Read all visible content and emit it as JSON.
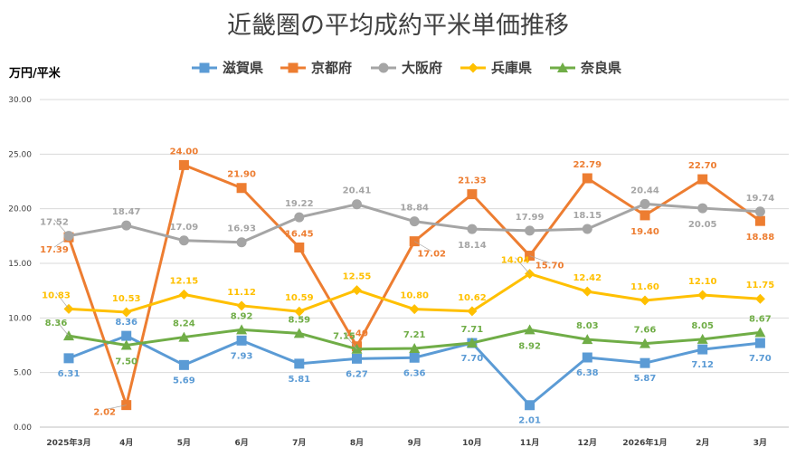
{
  "chart_data": {
    "type": "line",
    "title": "近畿圏の平均成約平米単価推移",
    "ylabel": "万円/平米",
    "xlabel": "",
    "ylim": [
      0,
      30
    ],
    "yticks": [
      "0.00",
      "5.00",
      "10.00",
      "15.00",
      "20.00",
      "25.00",
      "30.00"
    ],
    "grid": true,
    "legend_position": "top",
    "categories": [
      "2025年3月",
      "4月",
      "5月",
      "6月",
      "7月",
      "8月",
      "9月",
      "10月",
      "11月",
      "12月",
      "2026年1月",
      "2月",
      "3月"
    ],
    "series": [
      {
        "name": "滋賀県",
        "color": "#5b9bd5",
        "marker": "square",
        "values": [
          6.31,
          8.36,
          5.69,
          7.93,
          5.81,
          6.27,
          6.36,
          7.7,
          2.01,
          6.38,
          5.87,
          7.12,
          7.7
        ],
        "labels": [
          "6.31",
          "8.36",
          "5.69",
          "7.93",
          "5.81",
          "6.27",
          "6.36",
          "7.70",
          "2.01",
          "6.38",
          "5.87",
          "7.12",
          "7.70"
        ]
      },
      {
        "name": "京都府",
        "color": "#ed7d31",
        "marker": "square",
        "values": [
          17.39,
          2.02,
          24.0,
          21.9,
          16.45,
          7.4,
          17.02,
          21.33,
          15.7,
          22.79,
          19.4,
          22.7,
          18.88
        ],
        "labels": [
          "17.39",
          "2.02",
          "24.00",
          "21.90",
          "16.45",
          "7.40",
          "17.02",
          "21.33",
          "15.70",
          "22.79",
          "19.40",
          "22.70",
          "18.88"
        ]
      },
      {
        "name": "大阪府",
        "color": "#a5a5a5",
        "marker": "circle",
        "values": [
          17.52,
          18.47,
          17.09,
          16.93,
          19.22,
          20.41,
          18.84,
          18.14,
          17.99,
          18.15,
          20.44,
          20.05,
          19.74
        ],
        "labels": [
          "17.52",
          "18.47",
          "17.09",
          "16.93",
          "19.22",
          "20.41",
          "18.84",
          "18.14",
          "17.99",
          "18.15",
          "20.44",
          "20.05",
          "19.74"
        ]
      },
      {
        "name": "兵庫県",
        "color": "#ffc000",
        "marker": "diamond",
        "values": [
          10.83,
          10.53,
          12.15,
          11.12,
          10.59,
          12.55,
          10.8,
          10.62,
          14.04,
          12.42,
          11.6,
          12.1,
          11.75
        ],
        "labels": [
          "10.83",
          "10.53",
          "12.15",
          "11.12",
          "10.59",
          "12.55",
          "10.80",
          "10.62",
          "14.04",
          "12.42",
          "11.60",
          "12.10",
          "11.75"
        ]
      },
      {
        "name": "奈良県",
        "color": "#70ad47",
        "marker": "triangle",
        "values": [
          8.36,
          7.5,
          8.24,
          8.92,
          8.59,
          7.15,
          7.21,
          7.71,
          8.92,
          8.03,
          7.66,
          8.05,
          8.67
        ],
        "labels": [
          "8.36",
          "7.50",
          "8.24",
          "8.92",
          "8.59",
          "7.15",
          "7.21",
          "7.71",
          "8.92",
          "8.03",
          "7.66",
          "8.05",
          "8.67"
        ]
      }
    ]
  }
}
